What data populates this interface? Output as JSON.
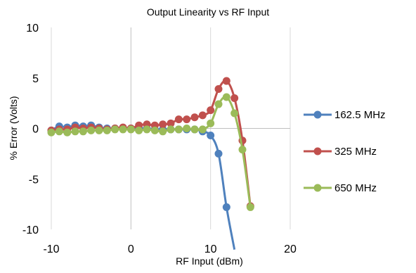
{
  "chart_data": {
    "type": "line",
    "title": "Output Linearity vs RF Input",
    "xlabel": "RF Input (dBm)",
    "ylabel": "% Error (Volts)",
    "xlim": [
      -10,
      20
    ],
    "ylim": [
      -10,
      10
    ],
    "x_ticks": [
      "-10",
      "0",
      "10",
      "20"
    ],
    "y_ticks": [
      "10",
      "5",
      "0",
      "-5",
      "-10"
    ],
    "grid": "vertical",
    "legend_position": "right",
    "series": [
      {
        "name": "162.5 MHz",
        "color": "#4F81BD",
        "x": [
          -10,
          -9,
          -8,
          -7,
          -6,
          -5,
          -4,
          -3,
          -2,
          -1,
          0,
          1,
          2,
          3,
          4,
          5,
          6,
          7,
          8,
          9,
          10,
          11,
          12,
          13
        ],
        "y": [
          -0.2,
          0.2,
          0.1,
          0.3,
          0.2,
          0.3,
          0.1,
          0.0,
          0.0,
          0.0,
          0.0,
          0.0,
          0.0,
          -0.1,
          -0.1,
          -0.1,
          -0.1,
          -0.1,
          -0.1,
          -0.3,
          -0.7,
          -2.5,
          -7.8,
          -12.0
        ]
      },
      {
        "name": "325 MHz",
        "color": "#C0504D",
        "x": [
          -10,
          -9,
          -8,
          -7,
          -6,
          -5,
          -4,
          -3,
          -2,
          -1,
          0,
          1,
          2,
          3,
          4,
          5,
          6,
          7,
          8,
          9,
          10,
          11,
          12,
          13,
          14,
          15
        ],
        "y": [
          -0.2,
          -0.1,
          -0.1,
          0.1,
          0.0,
          0.1,
          0.0,
          -0.1,
          0.0,
          0.1,
          0.0,
          0.3,
          0.4,
          0.3,
          0.4,
          0.5,
          0.9,
          0.9,
          1.1,
          1.3,
          1.8,
          3.9,
          4.7,
          3.0,
          -1.2,
          -7.7
        ]
      },
      {
        "name": "650 MHz",
        "color": "#9BBB59",
        "x": [
          -10,
          -9,
          -8,
          -7,
          -6,
          -5,
          -4,
          -3,
          -2,
          -1,
          0,
          1,
          2,
          3,
          4,
          5,
          6,
          7,
          8,
          9,
          10,
          11,
          12,
          13,
          14,
          15
        ],
        "y": [
          -0.4,
          -0.3,
          -0.4,
          -0.3,
          -0.3,
          -0.2,
          -0.2,
          -0.2,
          -0.1,
          -0.1,
          -0.1,
          -0.2,
          -0.1,
          -0.2,
          -0.3,
          -0.1,
          -0.1,
          0.0,
          -0.1,
          -0.1,
          0.5,
          2.4,
          3.1,
          1.5,
          -2.1,
          -7.8
        ]
      }
    ]
  }
}
